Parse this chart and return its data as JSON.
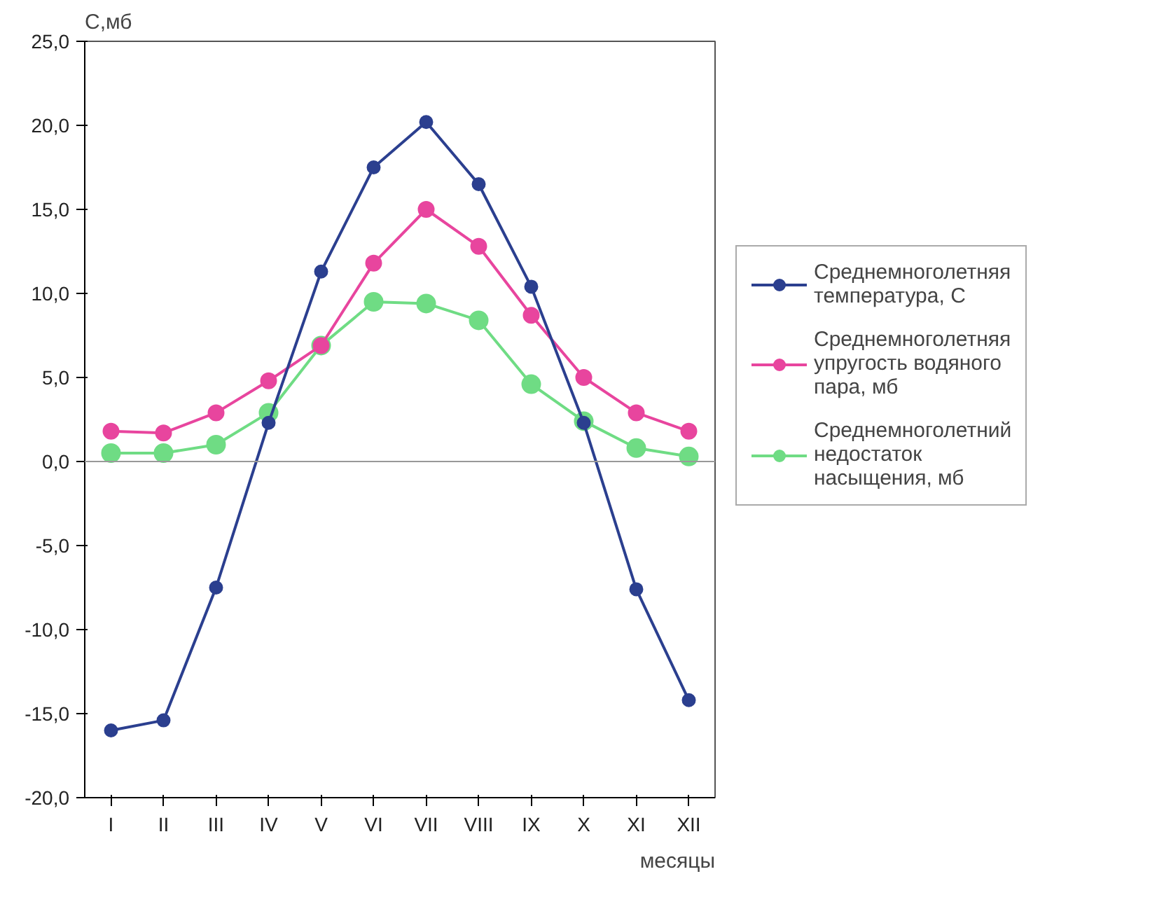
{
  "chart_data": {
    "type": "line",
    "ylabel": "С,мб",
    "xlabel": "месяцы",
    "categories": [
      "I",
      "II",
      "III",
      "IV",
      "V",
      "VI",
      "VII",
      "VIII",
      "IX",
      "X",
      "XI",
      "XII"
    ],
    "series": [
      {
        "name": "Среднемноголетняя температура, С",
        "color": "#2b3f8f",
        "values": [
          -16.0,
          -15.4,
          -7.5,
          2.3,
          11.3,
          17.5,
          20.2,
          16.5,
          10.4,
          2.3,
          -7.6,
          -14.2
        ]
      },
      {
        "name": "Среднемноголетняя упругость водяного пара, мб",
        "color": "#e8459e",
        "values": [
          1.8,
          1.7,
          2.9,
          4.8,
          6.9,
          11.8,
          15.0,
          12.8,
          8.7,
          5.0,
          2.9,
          1.8
        ]
      },
      {
        "name": "Среднемноголетний недостаток насыщения, мб",
        "color": "#6fdc84",
        "values": [
          0.5,
          0.5,
          1.0,
          2.9,
          6.9,
          9.5,
          9.4,
          8.4,
          4.6,
          2.4,
          0.8,
          0.3
        ]
      }
    ],
    "ylim": [
      -20,
      25
    ],
    "yticks": [
      {
        "value": -20,
        "label": "-20,0"
      },
      {
        "value": -15,
        "label": "-15,0"
      },
      {
        "value": -10,
        "label": "-10,0"
      },
      {
        "value": -5,
        "label": "-5,0"
      },
      {
        "value": 0,
        "label": "0,0"
      },
      {
        "value": 5,
        "label": "5,0"
      },
      {
        "value": 10,
        "label": "10,0"
      },
      {
        "value": 15,
        "label": "15,0"
      },
      {
        "value": 20,
        "label": "20,0"
      },
      {
        "value": 25,
        "label": "25,0"
      }
    ],
    "ref_lines": [
      {
        "axis": "y",
        "value": 0,
        "color": "#999999"
      }
    ],
    "grid": false,
    "legend": "right",
    "marker": "circle",
    "line_style": "solid"
  }
}
